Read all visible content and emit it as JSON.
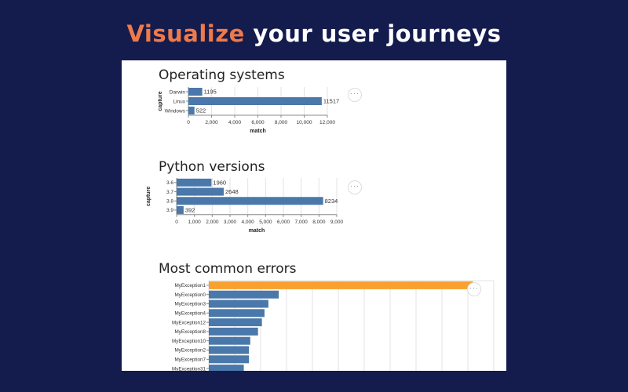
{
  "headline": {
    "accent": "Visualize",
    "rest": "your user journeys"
  },
  "colors": {
    "background": "#141b4d",
    "accent": "#ee7a4a",
    "bar": "#4a78aa",
    "highlight": "#f8a12e"
  },
  "more_label": "···",
  "sections": [
    {
      "title": "Operating systems"
    },
    {
      "title": "Python versions"
    },
    {
      "title": "Most common errors"
    }
  ],
  "chart_data": [
    {
      "type": "bar",
      "title": "Operating systems",
      "orientation": "horizontal",
      "categories": [
        "Darwin",
        "Linux",
        "Windows"
      ],
      "values": [
        1195,
        11517,
        522
      ],
      "xlabel": "match",
      "ylabel": "capture",
      "xlim": [
        0,
        12000
      ],
      "xticks": [
        0,
        2000,
        4000,
        6000,
        8000,
        10000,
        12000
      ],
      "xtick_labels": [
        "0",
        "2,000",
        "4,000",
        "6,000",
        "8,000",
        "10,000",
        "12,000"
      ],
      "data_labels": true,
      "grid": true
    },
    {
      "type": "bar",
      "title": "Python versions",
      "orientation": "horizontal",
      "categories": [
        "3.6",
        "3.7",
        "3.8",
        "3.9"
      ],
      "values": [
        1960,
        2648,
        8234,
        392
      ],
      "xlabel": "match",
      "ylabel": "capture",
      "xlim": [
        0,
        9000
      ],
      "xticks": [
        0,
        1000,
        2000,
        3000,
        4000,
        5000,
        6000,
        7000,
        8000,
        9000
      ],
      "xtick_labels": [
        "0",
        "1,000",
        "2,000",
        "3,000",
        "4,000",
        "5,000",
        "6,000",
        "7,000",
        "8,000",
        "9,000"
      ],
      "data_labels": true,
      "grid": true
    },
    {
      "type": "bar",
      "title": "Most common errors",
      "orientation": "horizontal",
      "categories": [
        "MyException1",
        "MyException0",
        "MyException3",
        "MyException4",
        "MyException12",
        "MyException8",
        "MyException10",
        "MyException2",
        "MyException7",
        "MyException31"
      ],
      "values": [
        10200,
        2700,
        2300,
        2150,
        2050,
        1900,
        1600,
        1550,
        1550,
        1350
      ],
      "highlight": "MyException1",
      "xlim": [
        0,
        11000
      ],
      "grid": true
    }
  ]
}
